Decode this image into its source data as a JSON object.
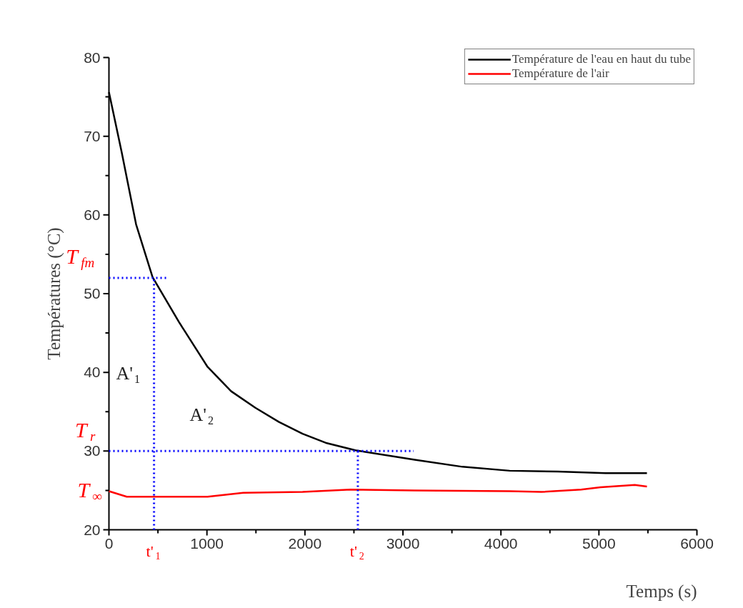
{
  "chart_data": {
    "type": "line",
    "xlabel": "Temps (s)",
    "ylabel": "Températures (°C)",
    "xlim": [
      0,
      6000
    ],
    "xticks": [
      0,
      1000,
      2000,
      3000,
      4000,
      5000,
      6000
    ],
    "ylim": [
      20,
      80
    ],
    "yticks": [
      20,
      30,
      40,
      50,
      60,
      70,
      80
    ],
    "grid": false,
    "legend": "top right",
    "line_style": "solid",
    "marker": "none",
    "series": [
      {
        "name": "Température de l'eau en haut du tube",
        "color": "#000000",
        "x": [
          0,
          131,
          277,
          445,
          714,
          1006,
          1247,
          1494,
          1735,
          1976,
          2224,
          2515,
          3120,
          3608,
          4090,
          4578,
          5067,
          5490
        ],
        "values": [
          75.6,
          67.9,
          58.8,
          52.1,
          46.4,
          40.7,
          37.6,
          35.5,
          33.7,
          32.2,
          31.0,
          30.1,
          28.9,
          28.0,
          27.5,
          27.4,
          27.2,
          27.2
        ]
      },
      {
        "name": "Température de l'air",
        "color": "#ff0000",
        "x": [
          0,
          182,
          460,
          1006,
          1370,
          1976,
          2464,
          3120,
          4090,
          4411,
          4819,
          5016,
          5366,
          5490
        ],
        "values": [
          24.9,
          24.2,
          24.2,
          24.2,
          24.7,
          24.8,
          25.1,
          25.0,
          24.9,
          24.8,
          25.1,
          25.4,
          25.7,
          25.5
        ]
      }
    ],
    "ref_lines": [
      {
        "axis": "y",
        "value": 52,
        "label": "T$_{fm}$",
        "color": "#0000ff",
        "line_style": "dotted"
      },
      {
        "axis": "y",
        "value": 30,
        "label": "T$_{r}$",
        "color": "#0000ff",
        "line_style": "dotted"
      },
      {
        "axis": "x",
        "value": 460,
        "label": "t'$_{1}$",
        "color": "#0000ff",
        "line_style": "dotted"
      },
      {
        "axis": "x",
        "value": 2540,
        "label": "t'$_{2}$",
        "color": "#0000ff",
        "line_style": "dotted"
      }
    ],
    "annotations": [
      "T$_{∞}$",
      "A'$_{1}$",
      "A'$_{2}$"
    ]
  }
}
